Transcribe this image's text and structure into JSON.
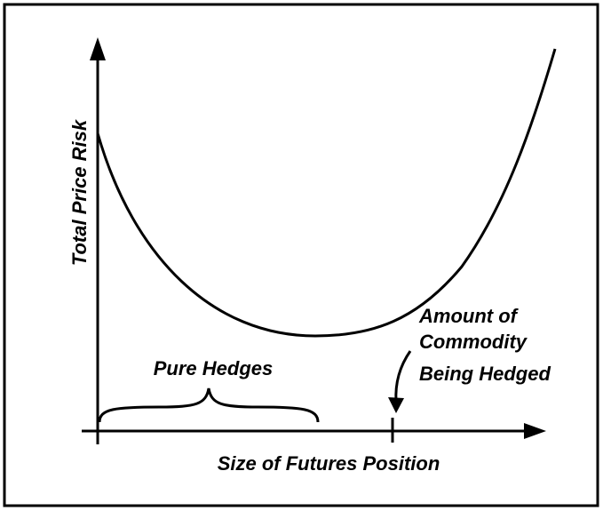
{
  "axes": {
    "y_label": "Total Price Risk",
    "x_label": "Size of Futures Position"
  },
  "annotations": {
    "pure_hedges": "Pure Hedges",
    "amount": [
      "Amount of",
      "Commodity",
      "Being Hedged"
    ]
  }
}
